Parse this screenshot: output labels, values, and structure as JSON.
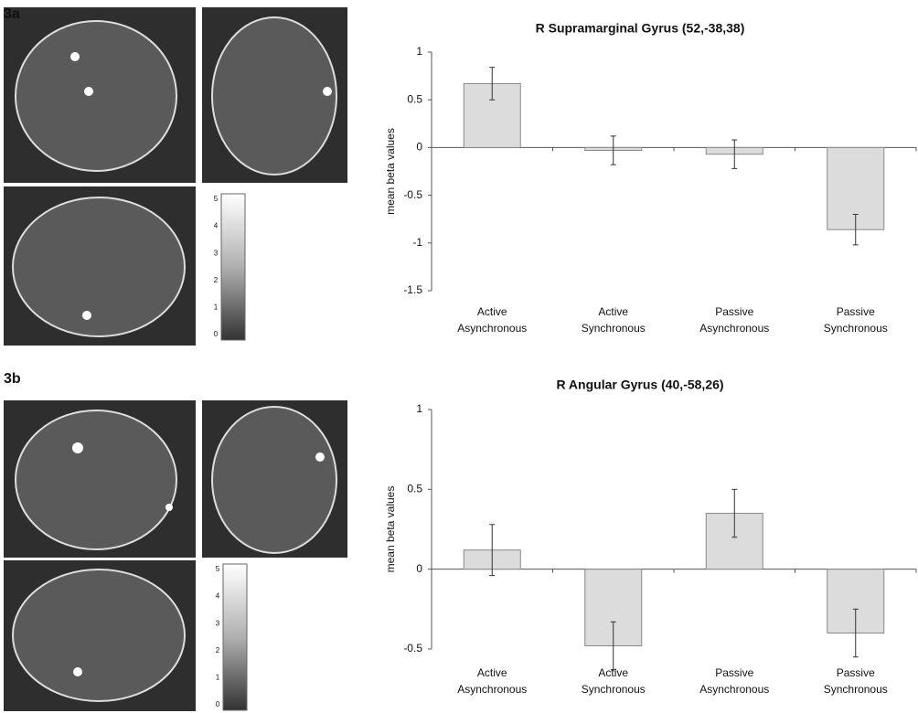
{
  "chart_data": [
    {
      "type": "bar",
      "panel_label": "3a",
      "title": "R Supramarginal Gyrus (52,-38,38)",
      "ylabel": "mean beta values",
      "categories": [
        [
          "Active",
          "Asynchronous"
        ],
        [
          "Active",
          "Synchronous"
        ],
        [
          "Passive",
          "Asynchronous"
        ],
        [
          "Passive",
          "Synchronous"
        ]
      ],
      "values": [
        0.67,
        -0.03,
        -0.07,
        -0.86
      ],
      "errors": [
        0.17,
        0.15,
        0.15,
        0.16
      ],
      "color": "#dcdcdc",
      "ylim": [
        -1.5,
        1
      ],
      "yticks": [
        -1.5,
        -1,
        -0.5,
        0,
        0.5,
        1
      ],
      "colorbar": {
        "ticks": [
          0,
          1,
          2,
          3,
          4,
          5
        ]
      }
    },
    {
      "type": "bar",
      "panel_label": "3b",
      "title": "R Angular Gyrus (40,-58,26)",
      "ylabel": "mean beta values",
      "categories": [
        [
          "Active",
          "Asynchronous"
        ],
        [
          "Active",
          "Synchronous"
        ],
        [
          "Passive",
          "Asynchronous"
        ],
        [
          "Passive",
          "Synchronous"
        ]
      ],
      "values": [
        0.12,
        -0.48,
        0.35,
        -0.4
      ],
      "errors": [
        0.16,
        0.15,
        0.15,
        0.15
      ],
      "color": "#dcdcdc",
      "ylim": [
        -0.5,
        1
      ],
      "yticks": [
        -0.5,
        0,
        0.5,
        1
      ],
      "colorbar": {
        "ticks": [
          0,
          1,
          2,
          3,
          4,
          5
        ]
      }
    }
  ]
}
